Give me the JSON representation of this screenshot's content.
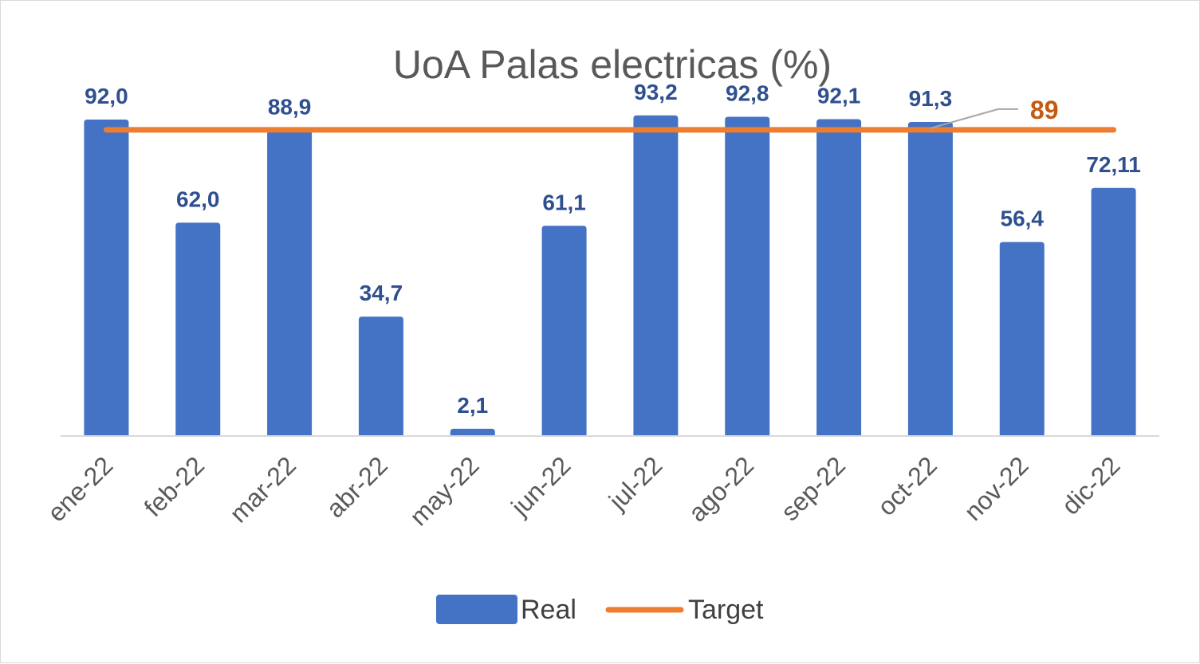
{
  "chart_data": {
    "type": "bar",
    "title": "UoA Palas electricas (%)",
    "categories": [
      "ene-22",
      "feb-22",
      "mar-22",
      "abr-22",
      "may-22",
      "jun-22",
      "jul-22",
      "ago-22",
      "sep-22",
      "oct-22",
      "nov-22",
      "dic-22"
    ],
    "series": [
      {
        "name": "Real",
        "type": "bar",
        "color": "#4472c4",
        "values": [
          92.0,
          62.0,
          88.9,
          34.7,
          2.1,
          61.1,
          93.2,
          92.8,
          92.1,
          91.3,
          56.4,
          72.11
        ],
        "labels": [
          "92,0",
          "62,0",
          "88,9",
          "34,7",
          "2,1",
          "61,1",
          "93,2",
          "92,8",
          "92,1",
          "91,3",
          "56,4",
          "72,11"
        ]
      },
      {
        "name": "Target",
        "type": "line",
        "color": "#ed7d31",
        "values": [
          89,
          89,
          89,
          89,
          89,
          89,
          89,
          89,
          89,
          89,
          89,
          89
        ],
        "callout": "89"
      }
    ],
    "ylim": [
      0,
      95
    ],
    "grid": false,
    "legend": "bottom",
    "target_label_color": "#c55a11",
    "data_label_color": "#2f4f8f"
  }
}
